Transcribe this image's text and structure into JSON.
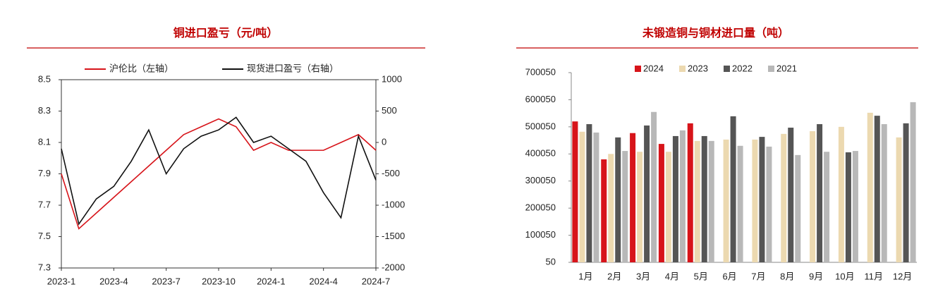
{
  "chart_data": [
    {
      "type": "line",
      "title": "铜进口盈亏（元/吨）",
      "categories": [
        "2023-1",
        null,
        null,
        "2023-4",
        null,
        null,
        "2023-7",
        null,
        null,
        "2023-10",
        null,
        null,
        "2024-1",
        null,
        null,
        "2024-4",
        null,
        null,
        "2024-7"
      ],
      "series": [
        {
          "name": "沪伦比（左轴）",
          "color": "#d7141a",
          "values": [
            7.9,
            7.55,
            7.65,
            7.75,
            7.85,
            7.95,
            8.05,
            8.15,
            8.2,
            8.25,
            8.2,
            8.05,
            8.1,
            8.05,
            8.05,
            8.05,
            8.1,
            8.15,
            8.05
          ]
        },
        {
          "name": "现货进口盈亏（右轴）",
          "color": "#111111",
          "axis": "y2",
          "values": [
            -100,
            -1300,
            -900,
            -700,
            -300,
            200,
            -500,
            -100,
            100,
            200,
            400,
            0,
            100,
            -100,
            -300,
            -800,
            -1200,
            100,
            -600
          ]
        }
      ],
      "ylim": [
        7.3,
        8.5
      ],
      "yticks": [
        7.3,
        7.5,
        7.7,
        7.9,
        8.1,
        8.3,
        8.5
      ],
      "y2lim": [
        -2000,
        1000
      ],
      "y2ticks": [
        -2000,
        -1500,
        -1000,
        -500,
        0,
        500,
        1000
      ]
    },
    {
      "type": "bar",
      "title": "未锻造铜与铜材进口量（吨）",
      "categories": [
        "1月",
        "2月",
        "3月",
        "4月",
        "5月",
        "6月",
        "7月",
        "8月",
        "9月",
        "10月",
        "11月",
        "12月"
      ],
      "series": [
        {
          "name": "2024",
          "color": "#d7141a",
          "values": [
            520000,
            380000,
            477000,
            437000,
            513000,
            null,
            null,
            null,
            null,
            null,
            null,
            null
          ]
        },
        {
          "name": "2023",
          "color": "#ecd9b0",
          "values": [
            482000,
            400000,
            408000,
            408000,
            448000,
            453000,
            453000,
            474000,
            484000,
            500000,
            552000,
            461000
          ]
        },
        {
          "name": "2022",
          "color": "#555555",
          "values": [
            510000,
            461000,
            505000,
            466000,
            466000,
            539000,
            463000,
            497000,
            510000,
            406000,
            541000,
            513000
          ]
        },
        {
          "name": "2021",
          "color": "#b8b8b8",
          "values": [
            479000,
            411000,
            555000,
            487000,
            448000,
            430000,
            427000,
            396000,
            408000,
            411000,
            510000,
            591000
          ]
        }
      ],
      "ylim": [
        50,
        700050
      ],
      "yticks": [
        50,
        100050,
        200050,
        300050,
        400050,
        500050,
        600050,
        700050
      ]
    }
  ]
}
